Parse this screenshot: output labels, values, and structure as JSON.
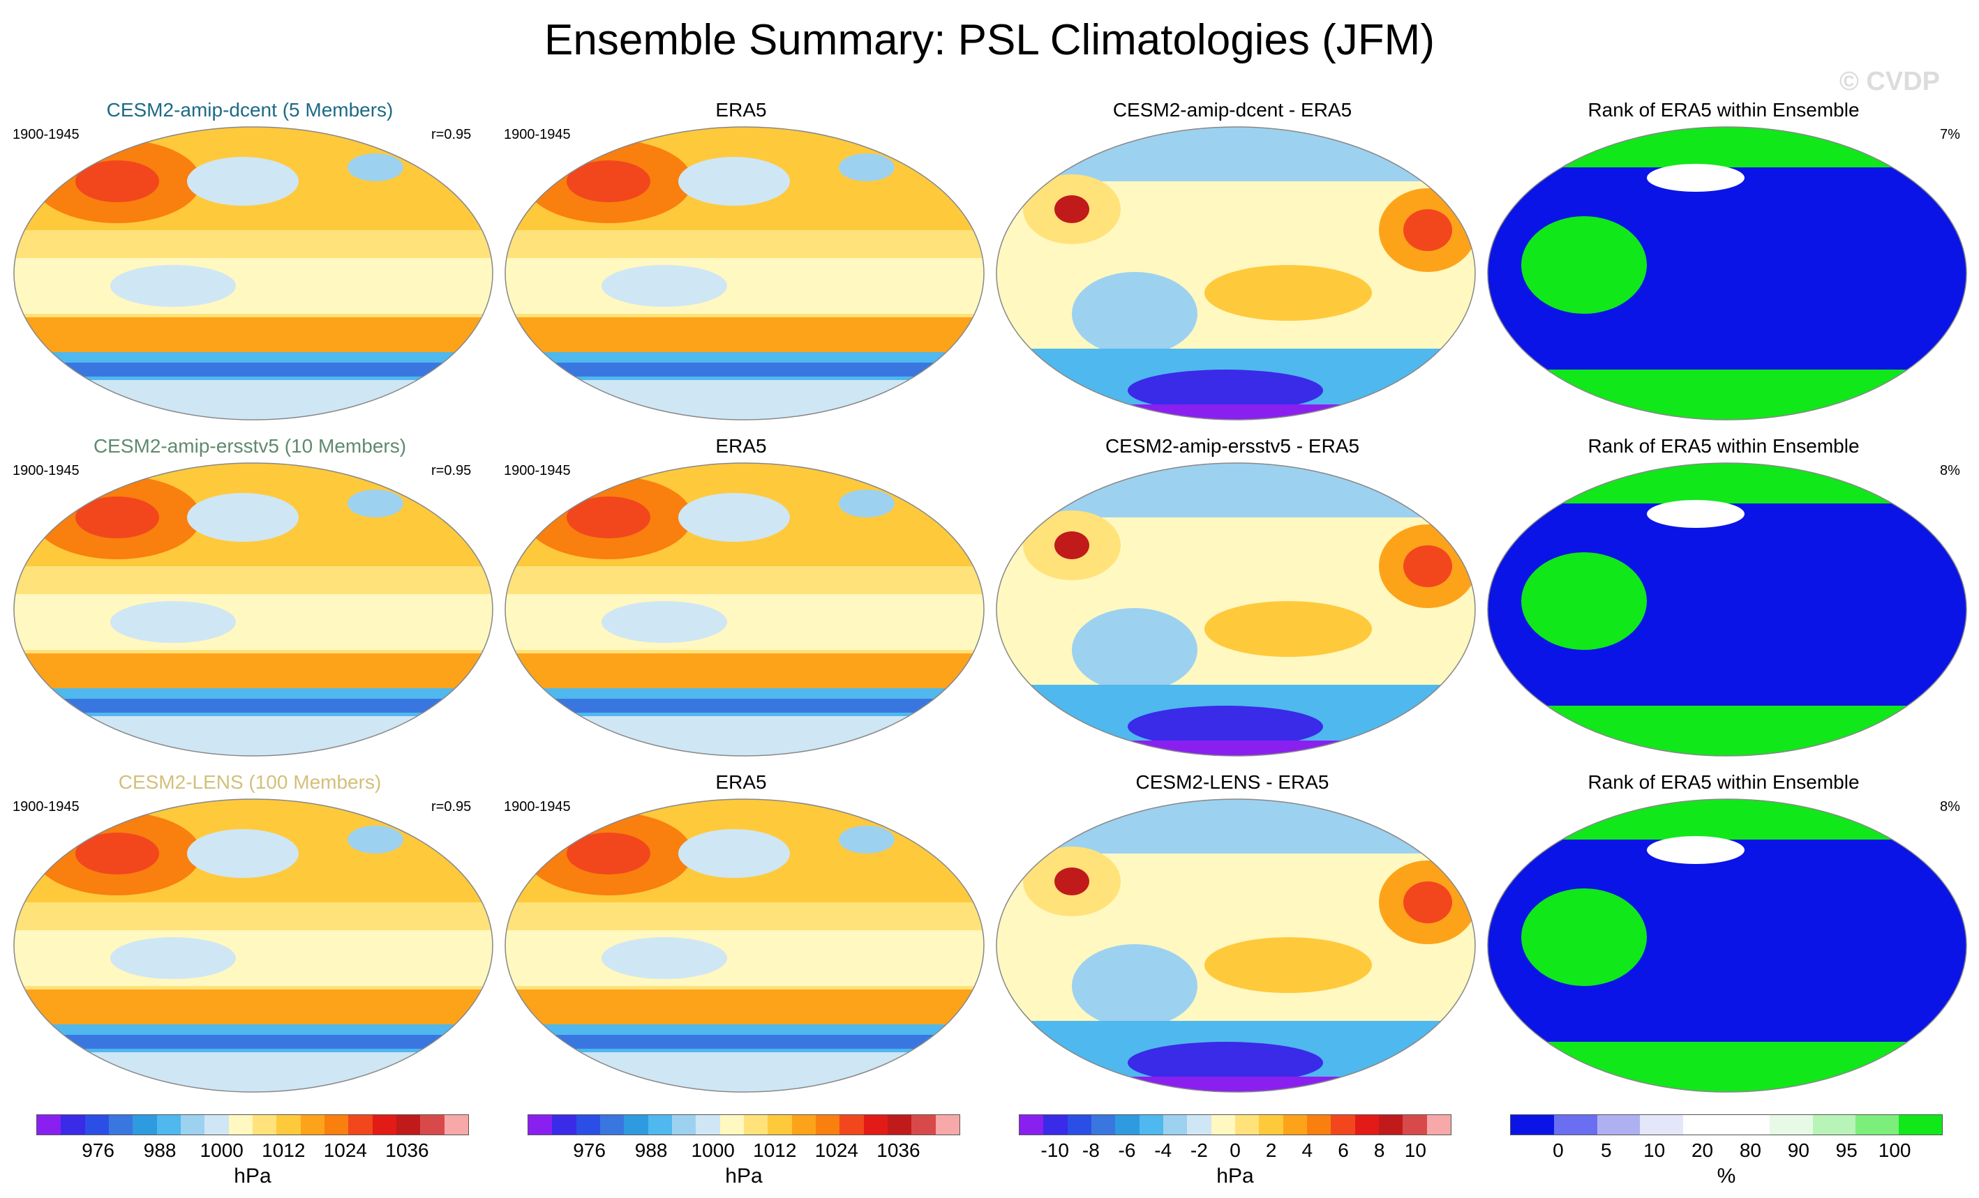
{
  "title": "Ensemble Summary: PSL Climatologies (JFM)",
  "watermark": "© CVDP",
  "rows": [
    {
      "model": {
        "title": "CESM2-amip-dcent (5 Members)",
        "title_color": "#1d6a86",
        "period": "1900-1945",
        "corr": "r=0.95"
      },
      "obs": {
        "title": "ERA5",
        "period": "1900-1945"
      },
      "diff": {
        "title": "CESM2-amip-dcent - ERA5"
      },
      "rank": {
        "title": "Rank of ERA5 within Ensemble",
        "pct": "7%"
      }
    },
    {
      "model": {
        "title": "CESM2-amip-ersstv5 (10 Members)",
        "title_color": "#5f8a6e",
        "period": "1900-1945",
        "corr": "r=0.95"
      },
      "obs": {
        "title": "ERA5",
        "period": "1900-1945"
      },
      "diff": {
        "title": "CESM2-amip-ersstv5 - ERA5"
      },
      "rank": {
        "title": "Rank of ERA5 within Ensemble",
        "pct": "8%"
      }
    },
    {
      "model": {
        "title": "CESM2-LENS (100 Members)",
        "title_color": "#d2c07a",
        "period": "1900-1945",
        "corr": "r=0.95"
      },
      "obs": {
        "title": "ERA5",
        "period": "1900-1945"
      },
      "diff": {
        "title": "CESM2-LENS - ERA5"
      },
      "rank": {
        "title": "Rank of ERA5 within Ensemble",
        "pct": "8%"
      }
    }
  ],
  "colorbars": [
    {
      "unit": "hPa",
      "ticks": [
        "976",
        "988",
        "1000",
        "1012",
        "1024",
        "1036"
      ],
      "colors": [
        "#8a20f0",
        "#3a2be8",
        "#2b4fe6",
        "#3a76e0",
        "#2e9be0",
        "#4fb8ee",
        "#9dd1f0",
        "#cfe6f4",
        "#fff8c0",
        "#ffe27a",
        "#ffc93c",
        "#fda31a",
        "#f97f0f",
        "#f2471d",
        "#e21b16",
        "#c01a1a",
        "#d84a4a",
        "#f7a8a8"
      ]
    },
    {
      "unit": "hPa",
      "ticks": [
        "976",
        "988",
        "1000",
        "1012",
        "1024",
        "1036"
      ],
      "colors": [
        "#8a20f0",
        "#3a2be8",
        "#2b4fe6",
        "#3a76e0",
        "#2e9be0",
        "#4fb8ee",
        "#9dd1f0",
        "#cfe6f4",
        "#fff8c0",
        "#ffe27a",
        "#ffc93c",
        "#fda31a",
        "#f97f0f",
        "#f2471d",
        "#e21b16",
        "#c01a1a",
        "#d84a4a",
        "#f7a8a8"
      ]
    },
    {
      "unit": "hPa",
      "ticks": [
        "-10",
        "-8",
        "-6",
        "-4",
        "-2",
        "0",
        "2",
        "4",
        "6",
        "8",
        "10"
      ],
      "colors": [
        "#8a20f0",
        "#3a2be8",
        "#2b4fe6",
        "#3a76e0",
        "#2e9be0",
        "#4fb8ee",
        "#9dd1f0",
        "#cfe6f4",
        "#fff8c0",
        "#ffe27a",
        "#ffc93c",
        "#fda31a",
        "#f97f0f",
        "#f2471d",
        "#e21b16",
        "#c01a1a",
        "#d84a4a",
        "#f7a8a8"
      ]
    },
    {
      "unit": "%",
      "ticks": [
        "0",
        "5",
        "10",
        "20",
        "80",
        "90",
        "95",
        "100"
      ],
      "colors": [
        "#0a14e6",
        "#6a6ef0",
        "#aeb0f2",
        "#e4e6fa",
        "#ffffff",
        "#ffffff",
        "#e6fae6",
        "#b8f4b8",
        "#7cee7c",
        "#10e81a"
      ]
    }
  ]
}
